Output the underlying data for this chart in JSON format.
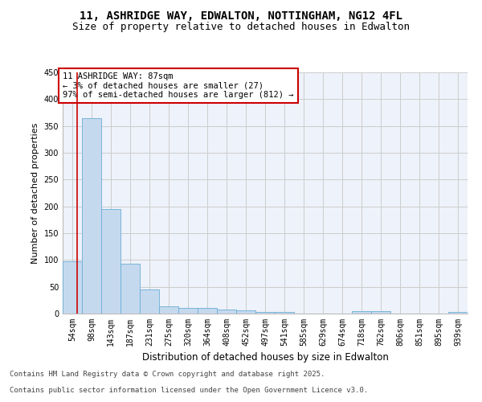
{
  "title_line1": "11, ASHRIDGE WAY, EDWALTON, NOTTINGHAM, NG12 4FL",
  "title_line2": "Size of property relative to detached houses in Edwalton",
  "xlabel": "Distribution of detached houses by size in Edwalton",
  "ylabel": "Number of detached properties",
  "bar_color": "#c5d9ee",
  "bar_edge_color": "#6aaed6",
  "categories": [
    "54sqm",
    "98sqm",
    "143sqm",
    "187sqm",
    "231sqm",
    "275sqm",
    "320sqm",
    "364sqm",
    "408sqm",
    "452sqm",
    "497sqm",
    "541sqm",
    "585sqm",
    "629sqm",
    "674sqm",
    "718sqm",
    "762sqm",
    "806sqm",
    "851sqm",
    "895sqm",
    "939sqm"
  ],
  "values": [
    97,
    365,
    195,
    93,
    45,
    14,
    10,
    10,
    7,
    6,
    3,
    3,
    0,
    0,
    0,
    5,
    5,
    0,
    0,
    0,
    3
  ],
  "ylim": [
    0,
    450
  ],
  "yticks": [
    0,
    50,
    100,
    150,
    200,
    250,
    300,
    350,
    400,
    450
  ],
  "annotation_text_line1": "11 ASHRIDGE WAY: 87sqm",
  "annotation_text_line2": "← 3% of detached houses are smaller (27)",
  "annotation_text_line3": "97% of semi-detached houses are larger (812) →",
  "vline_color": "#cc0000",
  "box_edge_color": "#cc0000",
  "grid_color": "#cccccc",
  "bg_color": "#eef2fa",
  "footer_line1": "Contains HM Land Registry data © Crown copyright and database right 2025.",
  "footer_line2": "Contains public sector information licensed under the Open Government Licence v3.0.",
  "title_fontsize": 10,
  "subtitle_fontsize": 9,
  "tick_fontsize": 7,
  "ylabel_fontsize": 8,
  "xlabel_fontsize": 8.5,
  "annotation_fontsize": 7.5,
  "footer_fontsize": 6.5
}
